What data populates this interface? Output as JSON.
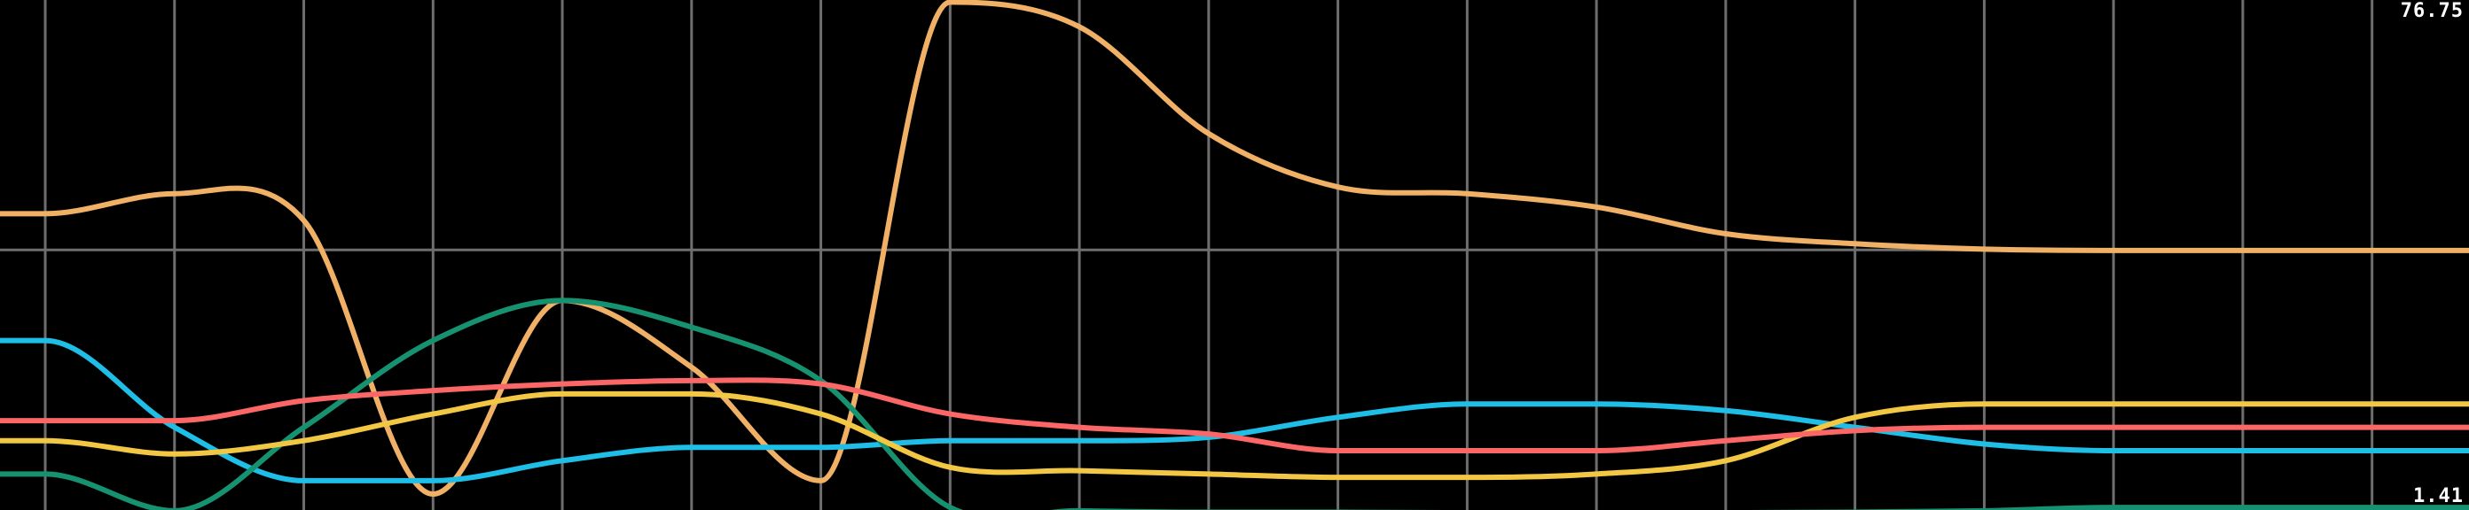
{
  "chart_data": {
    "type": "line",
    "y_max_label": "76.75",
    "y_min_label": "1.41",
    "ylim": [
      1.41,
      76.75
    ],
    "xlim": [
      -0.35,
      18.75
    ],
    "grid": true,
    "x": [
      0,
      1,
      2,
      3,
      4,
      5,
      6,
      7,
      8,
      9,
      10,
      11,
      12,
      13,
      14,
      15,
      16,
      17,
      18
    ],
    "series": [
      {
        "color": "#f0b066",
        "values": [
          45,
          48,
          44,
          3,
          32,
          22,
          5,
          76.7,
          73,
          57,
          49,
          48,
          46,
          42,
          40.5,
          39.7,
          39.5,
          39.5,
          39.5
        ]
      },
      {
        "color": "#1ebee6",
        "values": [
          26,
          13,
          5,
          5,
          8,
          10,
          10,
          11,
          11,
          11.5,
          14.5,
          16.5,
          16.5,
          15.5,
          13,
          10.5,
          9.5,
          9.5,
          9.5
        ]
      },
      {
        "color": "#179270",
        "values": [
          6,
          0.5,
          13,
          26,
          32,
          28,
          20,
          1,
          0.5,
          0.3,
          0.3,
          0.2,
          0.2,
          0.2,
          0.3,
          0.5,
          1,
          1,
          1
        ]
      },
      {
        "color": "#f2c744",
        "values": [
          11,
          9,
          11,
          15,
          18,
          18,
          15,
          7,
          6.5,
          6,
          5.5,
          5.5,
          6,
          8,
          14.5,
          16.5,
          16.5,
          16.5,
          16.5
        ]
      },
      {
        "color": "#fa6766",
        "values": [
          14,
          14,
          17,
          18.5,
          19.5,
          20,
          19.5,
          15,
          13,
          12,
          9.5,
          9.5,
          9.5,
          11,
          12.5,
          13,
          13,
          13,
          13
        ]
      }
    ]
  }
}
